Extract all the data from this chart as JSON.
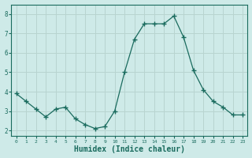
{
  "x": [
    0,
    1,
    2,
    3,
    4,
    5,
    6,
    7,
    8,
    9,
    10,
    11,
    12,
    13,
    14,
    15,
    16,
    17,
    18,
    19,
    20,
    21,
    22,
    23
  ],
  "y": [
    3.9,
    3.5,
    3.1,
    2.7,
    3.1,
    3.2,
    2.6,
    2.3,
    2.1,
    2.2,
    3.0,
    5.0,
    6.7,
    7.5,
    7.5,
    7.5,
    7.9,
    6.8,
    5.1,
    4.1,
    3.5,
    3.2,
    2.8,
    2.8
  ],
  "line_color": "#1a6b5e",
  "marker": "+",
  "marker_size": 4,
  "bg_color": "#ceeae8",
  "grid_color": "#b8d4d0",
  "xlabel": "Humidex (Indice chaleur)",
  "xlabel_fontsize": 7,
  "tick_color": "#1a6b5e",
  "ylim": [
    1.7,
    8.5
  ],
  "xlim": [
    -0.5,
    23.5
  ],
  "yticks": [
    2,
    3,
    4,
    5,
    6,
    7,
    8
  ],
  "xticks": [
    0,
    1,
    2,
    3,
    4,
    5,
    6,
    7,
    8,
    9,
    10,
    11,
    12,
    13,
    14,
    15,
    16,
    17,
    18,
    19,
    20,
    21,
    22,
    23
  ]
}
